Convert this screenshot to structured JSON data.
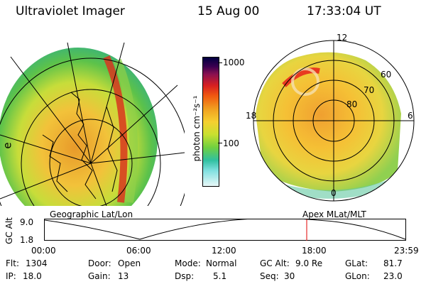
{
  "header": {
    "title": "Ultraviolet Imager",
    "date": "15 Aug 00",
    "time": "17:33:04 UT"
  },
  "colorbar": {
    "unit_label": "photon cm⁻²s⁻¹",
    "ticks": [
      "1000",
      "100"
    ]
  },
  "polar_plot": {
    "mlt_labels": [
      "12",
      "18",
      "6",
      "0"
    ],
    "lat_labels": [
      "60",
      "70",
      "80"
    ]
  },
  "geo_plot": {
    "side_label": "e"
  },
  "panels": {
    "left_title": "Geographic Lat/Lon",
    "right_title": "Apex MLat/MLT"
  },
  "orbit_plot": {
    "ylabel": "GC Alt",
    "yticks": [
      "9.0",
      "1.8"
    ],
    "xticks": [
      "00:00",
      "06:00",
      "12:00",
      "18:00",
      "23:59"
    ],
    "marker_time": "17:33"
  },
  "info": {
    "flt_label": "Flt:",
    "flt_value": "1304",
    "ip_label": "IP:",
    "ip_value": "18.0",
    "door_label": "Door:",
    "door_value": "Open",
    "gain_label": "Gain:",
    "gain_value": "13",
    "mode_label": "Mode:",
    "mode_value": "Normal",
    "dsp_label": "Dsp:",
    "dsp_value": "5.1",
    "gcalt_label": "GC Alt:",
    "gcalt_value": "9.0 Re",
    "seq_label": "Seq:",
    "seq_value": "30",
    "glat_label": "GLat:",
    "glat_value": "81.7",
    "glon_label": "GLon:",
    "glon_value": "23.0"
  },
  "colors": {
    "marker_line": "#e00000",
    "frame": "#000000"
  }
}
